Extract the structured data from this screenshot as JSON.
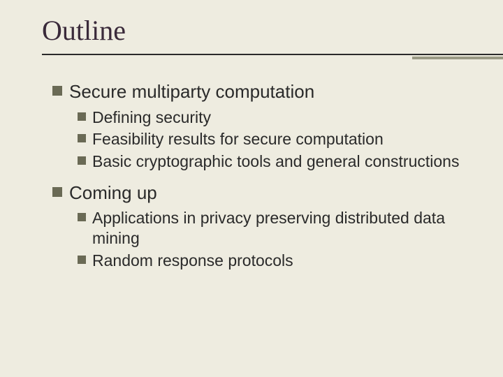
{
  "slide": {
    "title": "Outline",
    "title_font": "Georgia",
    "title_fontsize": 40,
    "title_color": "#3a2a3a",
    "background_color": "#eeece0",
    "rule_color": "#2a2a2a",
    "accent_rule_color": "#9a9a85",
    "bullet_color": "#6a6a55",
    "body_fontsize_l1": 26,
    "body_fontsize_l2": 23,
    "body_color": "#2a2a2a",
    "items": [
      {
        "label": "Secure multiparty computation",
        "children": [
          {
            "label": "Defining security"
          },
          {
            "label": "Feasibility results for secure computation"
          },
          {
            "label": "Basic cryptographic tools and general constructions"
          }
        ]
      },
      {
        "label": "Coming up",
        "children": [
          {
            "label": "Applications in privacy preserving distributed data mining"
          },
          {
            "label": "Random response protocols"
          }
        ]
      }
    ]
  }
}
